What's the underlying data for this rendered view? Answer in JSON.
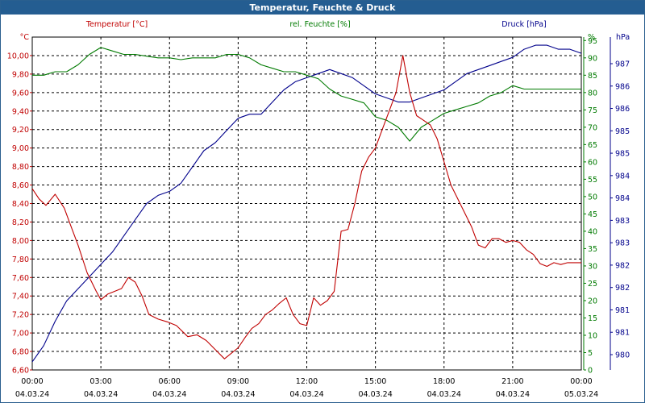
{
  "window": {
    "title": "Temperatur, Feuchte & Druck"
  },
  "chart_data": {
    "type": "line",
    "legend": [
      "Temperatur [°C]",
      "rel. Feuchte [%]",
      "Druck [hPa]"
    ],
    "axes": {
      "temperature": {
        "unit": "°C",
        "ylim": [
          6.6,
          10.2
        ],
        "ticks": [
          "6,60",
          "6,80",
          "7,00",
          "7,20",
          "7,40",
          "7,60",
          "7,80",
          "8,00",
          "8,20",
          "8,40",
          "8,60",
          "8,80",
          "9,00",
          "9,20",
          "9,40",
          "9,60",
          "9,80",
          "10,00"
        ],
        "color": "#c00000"
      },
      "humidity": {
        "unit": "%",
        "ylim": [
          0,
          96
        ],
        "ticks": [
          "0",
          "5",
          "10",
          "15",
          "20",
          "25",
          "30",
          "35",
          "40",
          "45",
          "50",
          "55",
          "60",
          "65",
          "70",
          "75",
          "80",
          "85",
          "90",
          "95"
        ],
        "color": "#007a00"
      },
      "pressure": {
        "unit": "hPa",
        "ylim": [
          979.6,
          987.8
        ],
        "ticks": [
          "980",
          "981",
          "981",
          "982",
          "982",
          "983",
          "983",
          "984",
          "984",
          "985",
          "985",
          "986",
          "986",
          "987"
        ],
        "color": "#00008b"
      }
    },
    "x_ticks": [
      {
        "time": "00:00",
        "date": "04.03.24"
      },
      {
        "time": "03:00",
        "date": "04.03.24"
      },
      {
        "time": "06:00",
        "date": "04.03.24"
      },
      {
        "time": "09:00",
        "date": "04.03.24"
      },
      {
        "time": "12:00",
        "date": "04.03.24"
      },
      {
        "time": "15:00",
        "date": "04.03.24"
      },
      {
        "time": "18:00",
        "date": "04.03.24"
      },
      {
        "time": "21:00",
        "date": "04.03.24"
      },
      {
        "time": "00:00",
        "date": "05.03.24"
      }
    ],
    "x_hours": [
      0,
      24
    ],
    "grid": true,
    "series": [
      {
        "name": "Temperatur [°C]",
        "axis": "temperature",
        "color": "#c00000",
        "x": [
          0,
          0.3,
          0.6,
          1,
          1.4,
          1.7,
          2,
          2.4,
          2.8,
          3.0,
          3.3,
          3.6,
          3.9,
          4.2,
          4.5,
          4.8,
          5.1,
          5.5,
          5.9,
          6.3,
          6.8,
          7.2,
          7.6,
          8.0,
          8.4,
          8.7,
          9.0,
          9.3,
          9.6,
          9.9,
          10.2,
          10.5,
          10.8,
          11.1,
          11.4,
          11.7,
          12.0,
          12.3,
          12.6,
          12.9,
          13.2,
          13.5,
          13.8,
          14.1,
          14.4,
          14.7,
          15.0,
          15.3,
          15.6,
          15.9,
          16.2,
          16.5,
          16.8,
          17.1,
          17.4,
          17.7,
          18.0,
          18.3,
          18.6,
          18.9,
          19.2,
          19.5,
          19.8,
          20.1,
          20.4,
          20.7,
          21.0,
          21.3,
          21.6,
          21.9,
          22.2,
          22.5,
          22.8,
          23.1,
          23.4,
          23.7,
          24.0
        ],
        "values": [
          8.56,
          8.45,
          8.38,
          8.5,
          8.35,
          8.15,
          7.95,
          7.65,
          7.45,
          7.36,
          7.42,
          7.45,
          7.48,
          7.6,
          7.55,
          7.4,
          7.2,
          7.15,
          7.12,
          7.08,
          6.96,
          6.98,
          6.92,
          6.82,
          6.72,
          6.78,
          6.84,
          6.95,
          7.05,
          7.1,
          7.2,
          7.25,
          7.32,
          7.38,
          7.2,
          7.1,
          7.08,
          7.38,
          7.3,
          7.35,
          7.45,
          8.1,
          8.12,
          8.4,
          8.75,
          8.9,
          9.0,
          9.2,
          9.4,
          9.6,
          10.0,
          9.6,
          9.35,
          9.3,
          9.25,
          9.1,
          8.85,
          8.6,
          8.45,
          8.3,
          8.15,
          7.95,
          7.92,
          8.02,
          8.02,
          7.98,
          8.0,
          7.98,
          7.9,
          7.85,
          7.75,
          7.72,
          7.76,
          7.74,
          7.76,
          7.76,
          7.76
        ]
      },
      {
        "name": "rel. Feuchte [%]",
        "axis": "humidity",
        "color": "#007a00",
        "x": [
          0,
          0.5,
          1.0,
          1.5,
          2.0,
          2.5,
          3.0,
          3.5,
          4.0,
          4.5,
          5.0,
          5.5,
          6.0,
          6.5,
          7.0,
          7.5,
          8.0,
          8.5,
          9.0,
          9.5,
          10.0,
          10.5,
          11.0,
          11.5,
          12.0,
          12.5,
          13.0,
          13.5,
          14.0,
          14.5,
          15.0,
          15.5,
          16.0,
          16.5,
          17.0,
          17.5,
          18.0,
          18.5,
          19.0,
          19.5,
          20.0,
          20.5,
          21.0,
          21.5,
          22.0,
          22.5,
          23.0,
          23.5,
          24.0
        ],
        "values": [
          85,
          85,
          86,
          86,
          88,
          91,
          93,
          92,
          91,
          91,
          90.5,
          90,
          90,
          89.5,
          90,
          90,
          90,
          91,
          91,
          90,
          88,
          87,
          86,
          86,
          85,
          84,
          81,
          79,
          78,
          77,
          73,
          72,
          70,
          66,
          70,
          72,
          74,
          75,
          76,
          77,
          79,
          80,
          82,
          81,
          81,
          81,
          81,
          81,
          81
        ]
      },
      {
        "name": "Druck [hPa]",
        "axis": "pressure",
        "color": "#00008b",
        "x": [
          0,
          0.5,
          1.0,
          1.5,
          2.0,
          2.5,
          3.0,
          3.5,
          4.0,
          4.5,
          5.0,
          5.5,
          6.0,
          6.5,
          7.0,
          7.5,
          8.0,
          8.5,
          9.0,
          9.5,
          10.0,
          10.5,
          11.0,
          11.5,
          12.0,
          12.5,
          13.0,
          13.5,
          14.0,
          14.5,
          15.0,
          15.5,
          16.0,
          16.5,
          17.0,
          17.5,
          18.0,
          18.5,
          19.0,
          19.5,
          20.0,
          20.5,
          21.0,
          21.5,
          22.0,
          22.5,
          23.0,
          23.5,
          24.0
        ],
        "values": [
          979.8,
          980.2,
          980.8,
          981.3,
          981.6,
          981.9,
          982.2,
          982.5,
          982.9,
          983.3,
          983.7,
          983.9,
          984.0,
          984.2,
          984.6,
          985.0,
          985.2,
          985.5,
          985.8,
          985.9,
          985.9,
          986.2,
          986.5,
          986.7,
          986.8,
          986.9,
          987.0,
          986.9,
          986.8,
          986.6,
          986.4,
          986.3,
          986.2,
          986.2,
          986.3,
          986.4,
          986.5,
          986.7,
          986.9,
          987.0,
          987.1,
          987.2,
          987.3,
          987.5,
          987.6,
          987.6,
          987.5,
          987.5,
          987.4
        ]
      }
    ]
  }
}
